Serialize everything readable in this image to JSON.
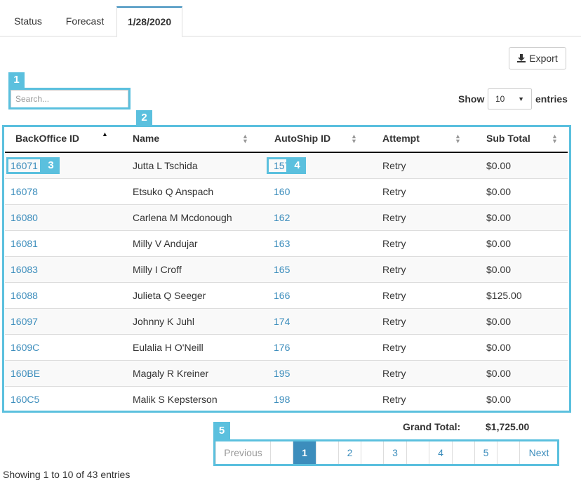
{
  "tabs": [
    "Status",
    "Forecast",
    "1/28/2020"
  ],
  "export_label": "Export",
  "search": {
    "placeholder": "Search..."
  },
  "length": {
    "show": "Show",
    "value": "10",
    "entries": "entries"
  },
  "columns": [
    "BackOffice ID",
    "Name",
    "AutoShip ID",
    "Attempt",
    "Sub Total"
  ],
  "rows": [
    [
      "16071",
      "Jutta L Tschida",
      "157",
      "Retry",
      "$0.00"
    ],
    [
      "16078",
      "Etsuko Q Anspach",
      "160",
      "Retry",
      "$0.00"
    ],
    [
      "16080",
      "Carlena M Mcdonough",
      "162",
      "Retry",
      "$0.00"
    ],
    [
      "16081",
      "Milly V Andujar",
      "163",
      "Retry",
      "$0.00"
    ],
    [
      "16083",
      "Milly I Croff",
      "165",
      "Retry",
      "$0.00"
    ],
    [
      "16088",
      "Julieta Q Seeger",
      "166",
      "Retry",
      "$125.00"
    ],
    [
      "16097",
      "Johnny K Juhl",
      "174",
      "Retry",
      "$0.00"
    ],
    [
      "1609C",
      "Eulalia H O'Neill",
      "176",
      "Retry",
      "$0.00"
    ],
    [
      "160BE",
      "Magaly R Kreiner",
      "195",
      "Retry",
      "$0.00"
    ],
    [
      "160C5",
      "Malik S Kepsterson",
      "198",
      "Retry",
      "$0.00"
    ]
  ],
  "grand_total": {
    "label": "Grand Total:",
    "value": "$1,725.00"
  },
  "pagination": {
    "previous": "Previous",
    "pages": [
      "1",
      "2",
      "3",
      "4",
      "5"
    ],
    "next": "Next",
    "current": "1"
  },
  "info": "Showing 1 to 10 of 43 entries",
  "badges": [
    "1",
    "2",
    "3",
    "4",
    "5"
  ],
  "colors": {
    "link": "#3c8dbc",
    "highlight": "#5bc0de",
    "active_page": "#3c8dbc"
  }
}
